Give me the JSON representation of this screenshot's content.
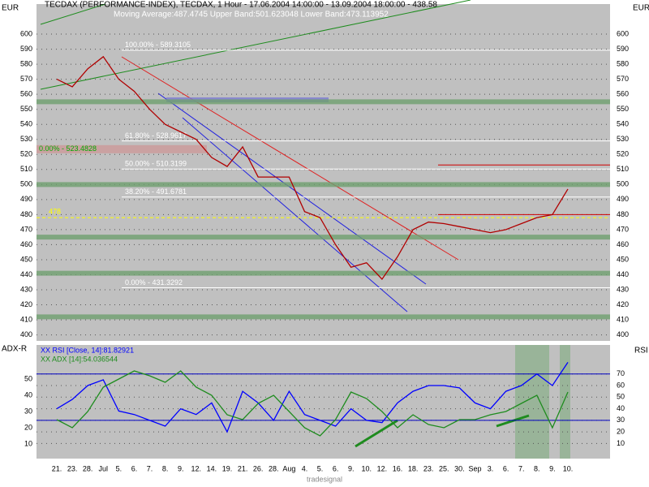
{
  "chart_data": [
    {
      "type": "line",
      "title": "TECDAX (PERFORMANCE-INDEX), TECDAX, 1 Hour - 17.06.2004 14:00:00 - 13.09.2004 18:00:00 - 438.58",
      "subtitle": "Moving Average:487.4745 Upper Band:501.623048 Lower Band:473.113952",
      "y_axis_label": "EUR",
      "ylim": [
        396,
        620
      ],
      "yticks": [
        400,
        410,
        420,
        430,
        440,
        450,
        460,
        470,
        480,
        490,
        500,
        510,
        520,
        530,
        540,
        550,
        560,
        570,
        580,
        590,
        600
      ],
      "grid": true,
      "series": [
        {
          "color": "#b00000",
          "values": [
            570,
            565,
            577,
            585,
            570,
            562,
            550,
            540,
            535,
            530,
            518,
            512,
            525,
            505,
            505,
            505,
            482,
            478,
            460,
            445,
            448,
            437,
            452,
            470,
            475,
            474,
            472,
            470,
            468,
            470,
            474,
            478,
            480,
            497
          ]
        }
      ],
      "fib_levels": [
        {
          "value": 589.3105,
          "label": "100.00% - 589.3105"
        },
        {
          "value": 528.9617,
          "label": "61.80% - 528.9617"
        },
        {
          "value": 510.3199,
          "label": "50.00% - 510.3199"
        },
        {
          "value": 491.6781,
          "label": "38.20% - 491.6781"
        },
        {
          "value": 431.3292,
          "label": "0.00% - 431.3292"
        }
      ],
      "old_fib_levels": [
        {
          "value": 523.4828,
          "label": "0.00% - 523.4828"
        }
      ],
      "marker_level": 478,
      "support_zones": [
        555,
        500,
        465,
        441,
        412
      ],
      "resistance_lines": [
        513,
        480
      ]
    },
    {
      "type": "line",
      "y_axis_label": "ADX-R",
      "y2_axis_label": "RSI",
      "categories": [
        "21.",
        "23.",
        "28.",
        "Jul",
        "5.",
        "6.",
        "7.",
        "8.",
        "9.",
        "12.",
        "14.",
        "19.",
        "21.",
        "26.",
        "28.",
        "Aug",
        "4.",
        "5.",
        "6.",
        "9.",
        "10.",
        "12.",
        "16.",
        "18.",
        "23.",
        "25.",
        "30.",
        "Sep",
        "3.",
        "6.",
        "7.",
        "8.",
        "9.",
        "10."
      ],
      "ylim": [
        1,
        71
      ],
      "yticks": [
        10,
        20,
        30,
        40,
        50
      ],
      "y2lim": [
        -3,
        95
      ],
      "y2ticks": [
        10,
        20,
        30,
        40,
        50,
        60,
        70
      ],
      "y2_levels": [
        70,
        30
      ],
      "series": [
        {
          "name": "XX RSI [Close, 14]:81.82921",
          "color": "#0000ff",
          "axis": "y2",
          "values": [
            40,
            48,
            60,
            65,
            38,
            35,
            30,
            25,
            40,
            35,
            45,
            20,
            55,
            45,
            30,
            55,
            35,
            30,
            25,
            40,
            30,
            28,
            45,
            55,
            60,
            60,
            58,
            45,
            40,
            55,
            60,
            70,
            60,
            80
          ]
        },
        {
          "name": "XX ADX [14]:54.036544",
          "color": "#1e8c1e",
          "values": [
            25,
            20,
            30,
            45,
            50,
            55,
            52,
            48,
            55,
            45,
            40,
            28,
            25,
            35,
            40,
            30,
            20,
            15,
            25,
            42,
            38,
            30,
            20,
            28,
            22,
            20,
            25,
            25,
            28,
            30,
            35,
            40,
            20,
            42
          ]
        }
      ]
    }
  ],
  "footer": "tradesignal"
}
